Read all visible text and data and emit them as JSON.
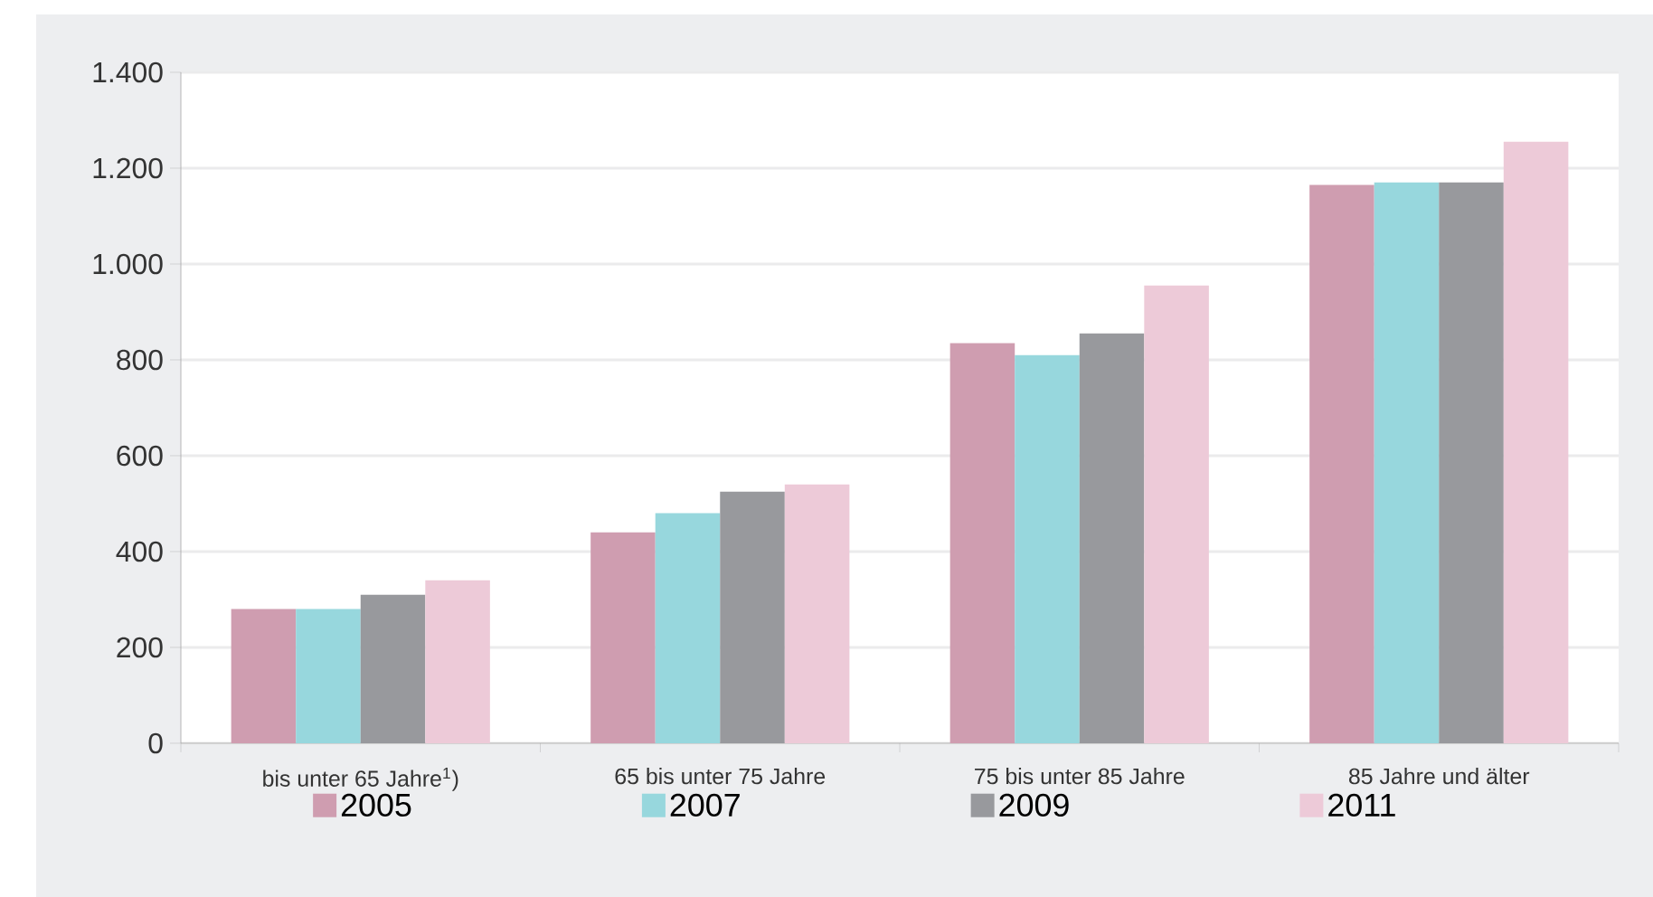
{
  "chart_data": {
    "type": "bar",
    "categories": [
      "bis unter 65 Jahre$^{1}$)",
      "65 bis unter 75 Jahre",
      "75 bis unter 85 Jahre",
      "85 Jahre und älter"
    ],
    "series": [
      {
        "name": "2005",
        "color": "#cf9db0",
        "values": [
          280,
          440,
          835,
          1165
        ]
      },
      {
        "name": "2007",
        "color": "#97d7dd",
        "values": [
          280,
          480,
          810,
          1170
        ]
      },
      {
        "name": "2009",
        "color": "#98999d",
        "values": [
          310,
          525,
          855,
          1170
        ]
      },
      {
        "name": "2011",
        "color": "#edcad8",
        "values": [
          340,
          540,
          955,
          1255
        ]
      }
    ],
    "ylim": [
      0,
      1400
    ],
    "yticks": [
      0,
      200,
      400,
      600,
      800,
      {
        "value": 1000,
        "label": "1.000"
      },
      {
        "value": 1200,
        "label": "1.200"
      },
      {
        "value": 1400,
        "label": "1.400"
      }
    ],
    "grid": "y",
    "legend": "bottom"
  }
}
